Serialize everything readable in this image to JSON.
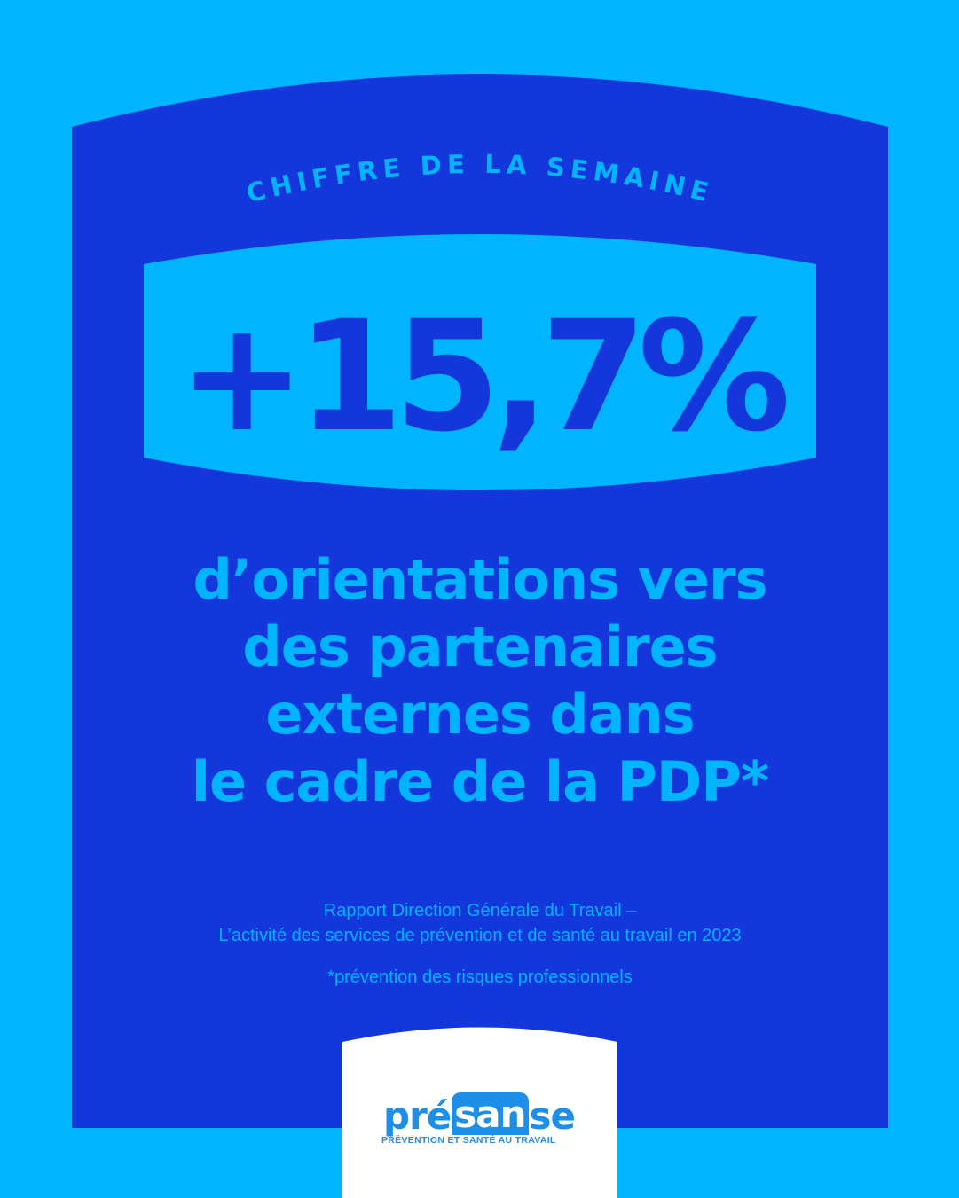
{
  "kicker": "CHIFFRE DE LA SEMAINE",
  "figure": "+15,7%",
  "headline": {
    "lines": [
      "d’orientations vers",
      "des partenaires",
      "externes dans",
      "le cadre de la PDP*"
    ]
  },
  "source": {
    "line1": "Rapport Direction Générale du Travail –",
    "line2": "L’activité des services de prévention et de santé au travail en 2023"
  },
  "footnote": "*prévention des risques professionnels",
  "logo": {
    "part1": "pré",
    "part2": "san",
    "part3": "se",
    "tagline": "PRÉVENTION ET SANTÉ AU TRAVAIL"
  },
  "colors": {
    "outer_bg": "#00b4ff",
    "panel": "#1437dc",
    "accent": "#00b4ff",
    "logo_blue": "#1d8fe6",
    "white": "#ffffff"
  }
}
